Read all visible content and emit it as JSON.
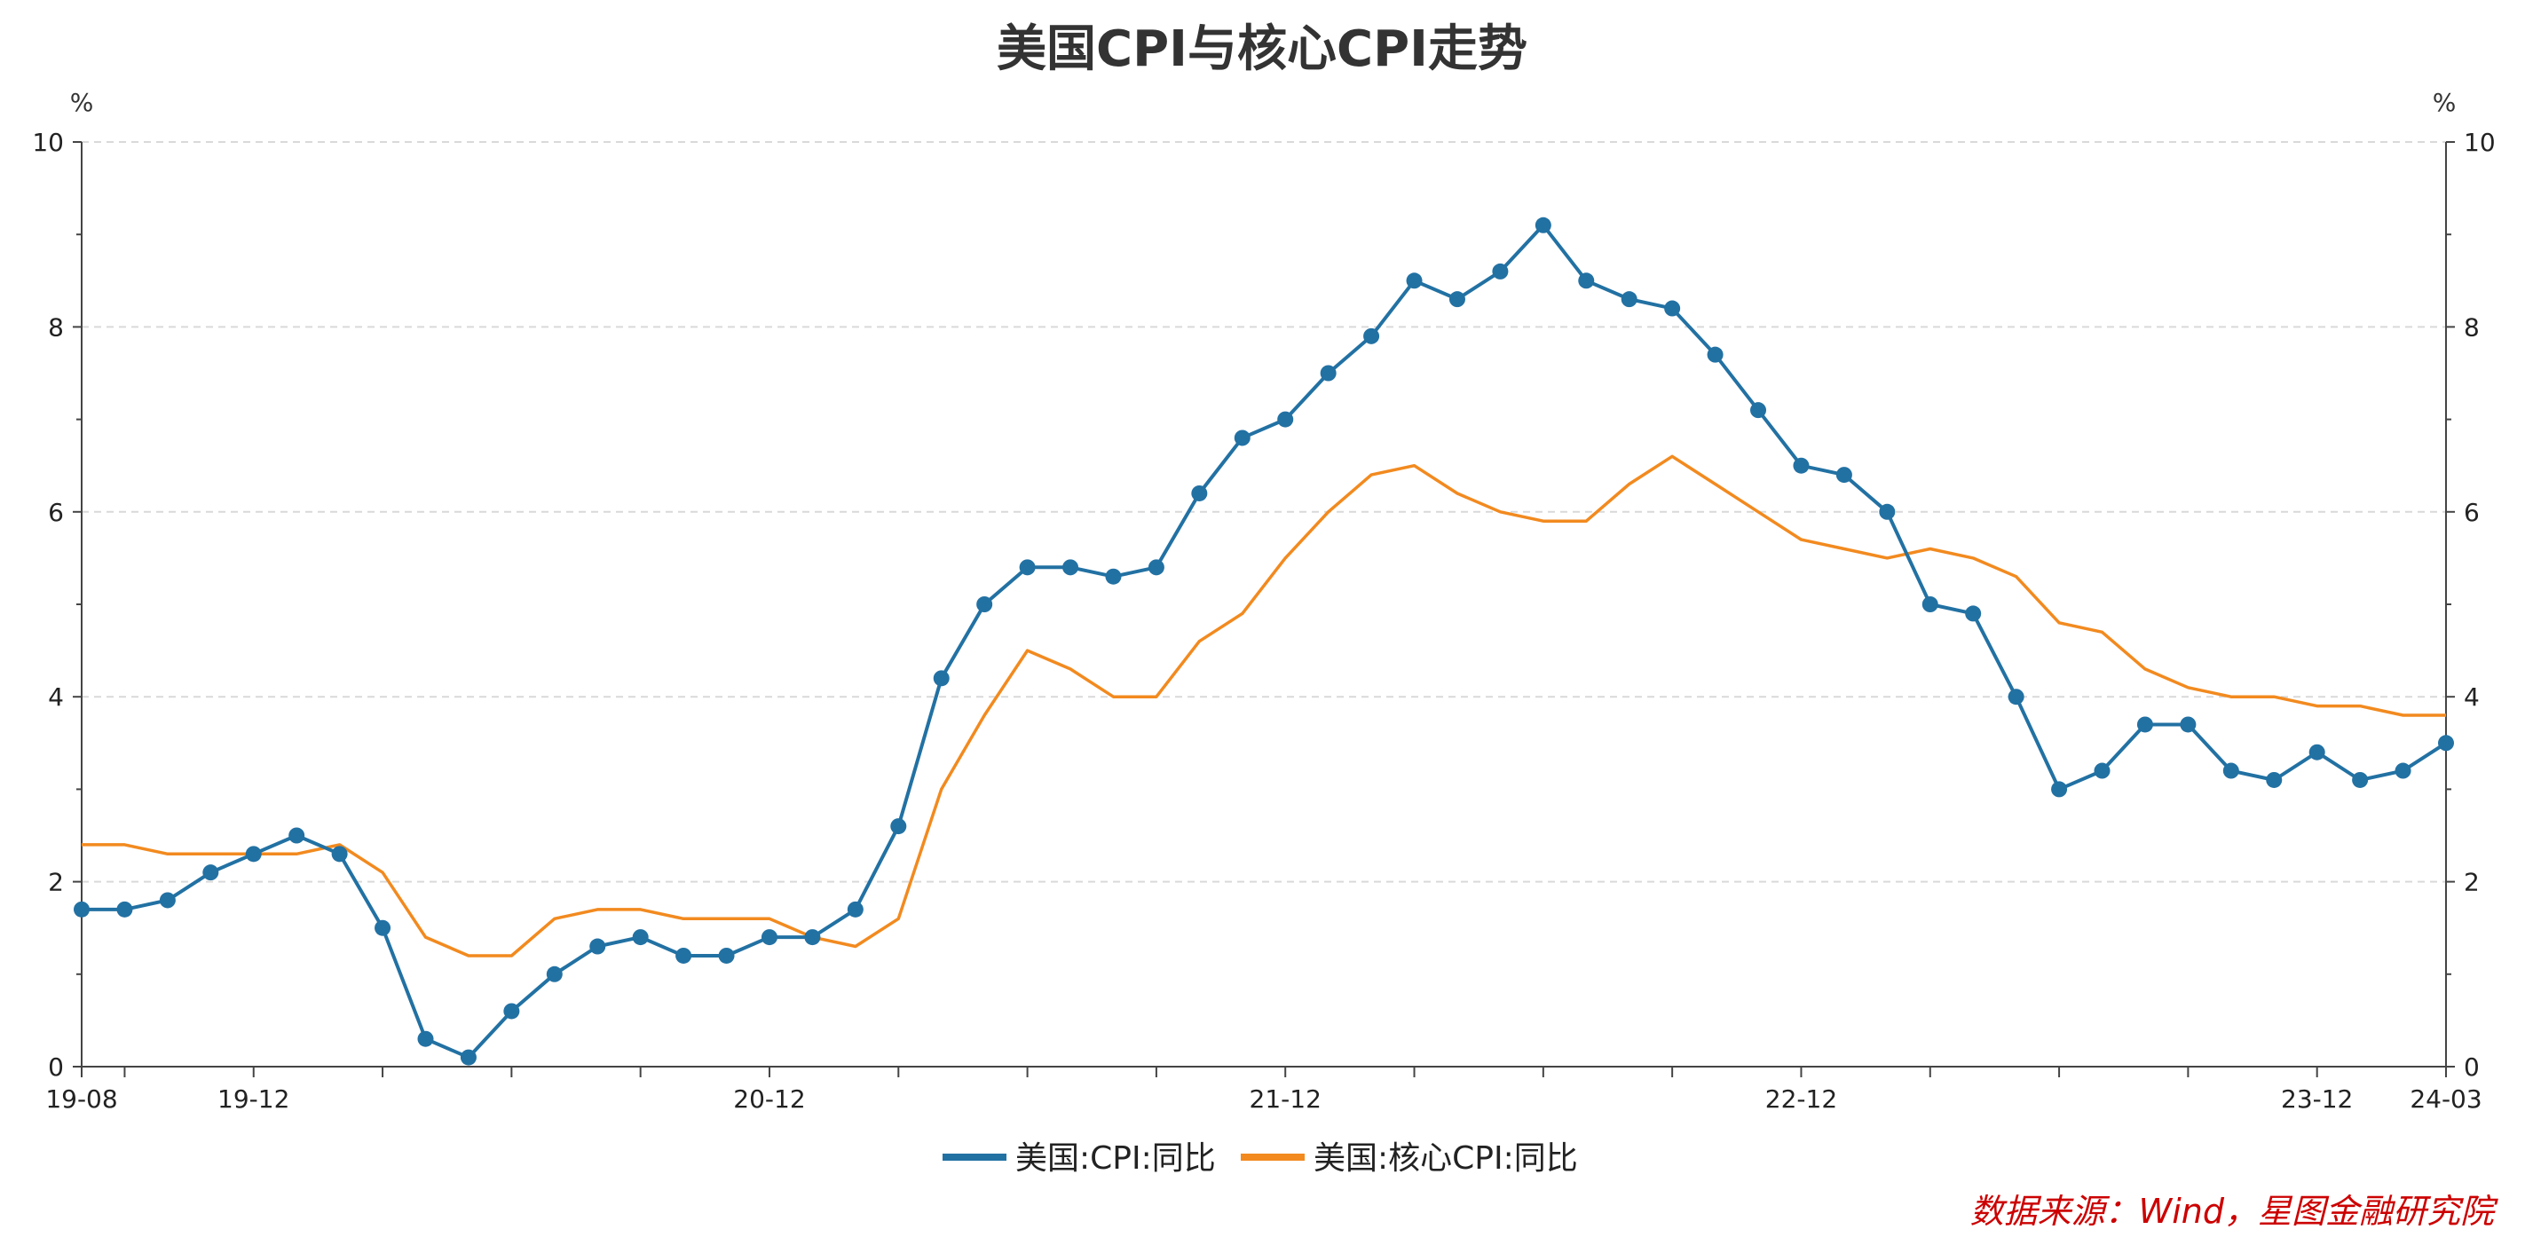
{
  "chart_data": {
    "type": "line",
    "title": "美国CPI与核心CPI走势",
    "y_unit_left": "%",
    "y_unit_right": "%",
    "ylim": [
      0,
      10
    ],
    "yticks": [
      0,
      2,
      4,
      6,
      8,
      10
    ],
    "x_tick_labels": [
      {
        "index": 0,
        "label": "19-08"
      },
      {
        "index": 4,
        "label": "19-12"
      },
      {
        "index": 16,
        "label": "20-12"
      },
      {
        "index": 28,
        "label": "21-12"
      },
      {
        "index": 40,
        "label": "22-12"
      },
      {
        "index": 52,
        "label": "23-12"
      },
      {
        "index": 55,
        "label": "24-03"
      }
    ],
    "x": [
      "19-08",
      "19-09",
      "19-10",
      "19-11",
      "19-12",
      "20-01",
      "20-02",
      "20-03",
      "20-04",
      "20-05",
      "20-06",
      "20-07",
      "20-08",
      "20-09",
      "20-10",
      "20-11",
      "20-12",
      "21-01",
      "21-02",
      "21-03",
      "21-04",
      "21-05",
      "21-06",
      "21-07",
      "21-08",
      "21-09",
      "21-10",
      "21-11",
      "21-12",
      "22-01",
      "22-02",
      "22-03",
      "22-04",
      "22-05",
      "22-06",
      "22-07",
      "22-08",
      "22-09",
      "22-10",
      "22-11",
      "22-12",
      "23-01",
      "23-02",
      "23-03",
      "23-04",
      "23-05",
      "23-06",
      "23-07",
      "23-08",
      "23-09",
      "23-10",
      "23-11",
      "23-12",
      "24-01",
      "24-02",
      "24-03"
    ],
    "grid": true,
    "legend_position": "bottom-center",
    "series": [
      {
        "name": "美国:CPI:同比",
        "color": "#2271a3",
        "markers": true,
        "values": [
          1.7,
          1.7,
          1.8,
          2.1,
          2.3,
          2.5,
          2.3,
          1.5,
          0.3,
          0.1,
          0.6,
          1.0,
          1.3,
          1.4,
          1.2,
          1.2,
          1.4,
          1.4,
          1.7,
          2.6,
          4.2,
          5.0,
          5.4,
          5.4,
          5.3,
          5.4,
          6.2,
          6.8,
          7.0,
          7.5,
          7.9,
          8.5,
          8.3,
          8.6,
          9.1,
          8.5,
          8.3,
          8.2,
          7.7,
          7.1,
          6.5,
          6.4,
          6.0,
          5.0,
          4.9,
          4.0,
          3.0,
          3.2,
          3.7,
          3.7,
          3.2,
          3.1,
          3.4,
          3.1,
          3.2,
          3.5
        ]
      },
      {
        "name": "美国:核心CPI:同比",
        "color": "#f28a1f",
        "markers": false,
        "values": [
          2.4,
          2.4,
          2.3,
          2.3,
          2.3,
          2.3,
          2.4,
          2.1,
          1.4,
          1.2,
          1.2,
          1.6,
          1.7,
          1.7,
          1.6,
          1.6,
          1.6,
          1.4,
          1.3,
          1.6,
          3.0,
          3.8,
          4.5,
          4.3,
          4.0,
          4.0,
          4.6,
          4.9,
          5.5,
          6.0,
          6.4,
          6.5,
          6.2,
          6.0,
          5.9,
          5.9,
          6.3,
          6.6,
          6.3,
          6.0,
          5.7,
          5.6,
          5.5,
          5.6,
          5.5,
          5.3,
          4.8,
          4.7,
          4.3,
          4.1,
          4.0,
          4.0,
          3.9,
          3.9,
          3.8,
          3.8
        ]
      }
    ]
  },
  "source_note": "数据来源：Wind，星图金融研究院"
}
